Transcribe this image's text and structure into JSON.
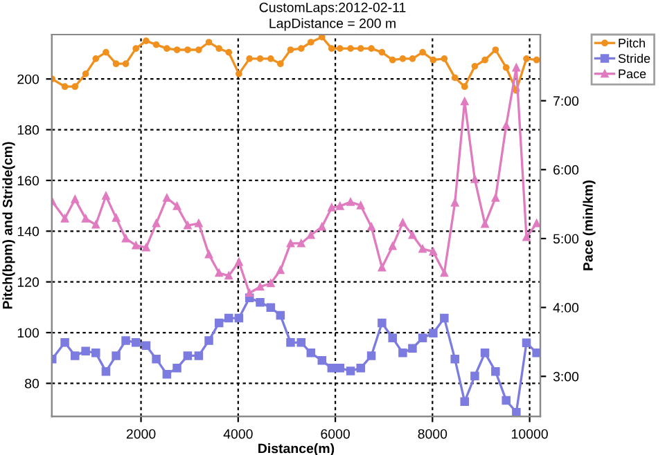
{
  "chart_data": {
    "type": "line",
    "title": "CustomLaps:2012-02-11",
    "subtitle": "LapDistance = 200 m",
    "xlabel": "Distance(m)",
    "ylabel": "Pitch(bpm) and Stride(cm)",
    "y2label": "Pace (min/km)",
    "x": [
      170,
      432,
      641,
      860,
      1069,
      1278,
      1487,
      1686,
      1895,
      2105,
      2314,
      2532,
      2741,
      2960,
      3188,
      3397,
      3606,
      3806,
      4015,
      4233,
      4452,
      4670,
      4870,
      5079,
      5297,
      5497,
      5725,
      5925,
      6096,
      6314,
      6523,
      6742,
      6960,
      7179,
      7388,
      7588,
      7797,
      8015,
      8243,
      8462,
      8662,
      8871,
      9080,
      9298,
      9517,
      9726,
      9935,
      10144
    ],
    "series": [
      {
        "name": "Pitch",
        "color": "#f0901e",
        "marker": "circle",
        "values": [
          200,
          197,
          197,
          202,
          208,
          210.5,
          206,
          206,
          212,
          215,
          213.5,
          212,
          211.5,
          211.5,
          211.5,
          214.5,
          212,
          210.5,
          202,
          208,
          208,
          208,
          206,
          211.5,
          212,
          214.5,
          216.5,
          212,
          212,
          212,
          212,
          212,
          210.5,
          207.5,
          208,
          208,
          210.5,
          207.5,
          208,
          200.5,
          197,
          205,
          207.5,
          211.5,
          204.5,
          195.5,
          208,
          207.5
        ]
      },
      {
        "name": "Stride",
        "color": "#7b7be0",
        "marker": "square",
        "values": [
          89.6,
          96.1,
          90.9,
          92.7,
          92,
          84.7,
          90.9,
          96.9,
          96.1,
          94.9,
          89.6,
          83.6,
          86,
          90.9,
          90.9,
          96.9,
          103.8,
          105.7,
          105.7,
          113.7,
          111.9,
          109.9,
          106.8,
          96.1,
          96.1,
          92,
          89,
          86,
          86,
          84.9,
          86,
          90.9,
          103.8,
          97.9,
          92,
          93.8,
          97.9,
          99.8,
          105.7,
          89.6,
          72.8,
          82.9,
          92,
          84.7,
          73.3,
          68.6,
          96,
          92
        ]
      },
      {
        "name": "Pace",
        "color": "#e07bc0",
        "marker": "triangle",
        "axis": "y2",
        "values": [
          5.54,
          5.29,
          5.57,
          5.29,
          5.2,
          5.62,
          5.3,
          5.0,
          4.9,
          4.87,
          5.22,
          5.59,
          5.47,
          5.19,
          5.22,
          4.77,
          4.5,
          4.46,
          4.66,
          4.21,
          4.3,
          4.35,
          4.54,
          4.93,
          4.93,
          5.05,
          5.17,
          5.45,
          5.47,
          5.53,
          5.48,
          5.17,
          4.58,
          4.89,
          5.23,
          5.05,
          4.85,
          4.81,
          4.5,
          5.52,
          6.99,
          5.86,
          5.21,
          5.59,
          6.64,
          7.48,
          5.02,
          5.22
        ]
      }
    ],
    "xlim": [
      165,
      10220
    ],
    "xticks": [
      2000,
      4000,
      6000,
      8000,
      10000
    ],
    "ylim": [
      67,
      217.5
    ],
    "yticks": [
      80,
      100,
      120,
      140,
      160,
      180,
      200
    ],
    "y2lim": [
      2.42,
      7.96
    ],
    "y2ticks": [
      {
        "value": 3,
        "label": "3:00"
      },
      {
        "value": 4,
        "label": "4:00"
      },
      {
        "value": 5,
        "label": "5:00"
      },
      {
        "value": 6,
        "label": "6:00"
      },
      {
        "value": 7,
        "label": "7:00"
      }
    ],
    "grid": true,
    "legend": "top right",
    "line_style": "solid"
  }
}
